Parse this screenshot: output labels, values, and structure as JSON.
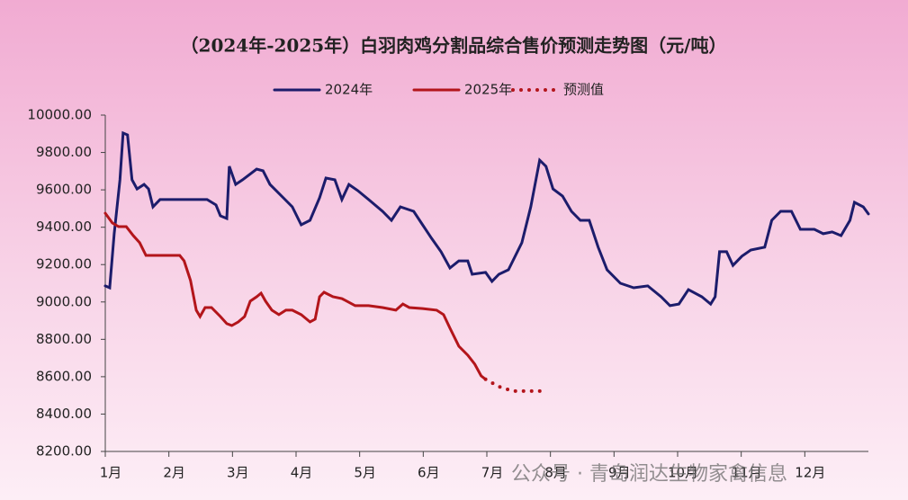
{
  "chart_data": {
    "type": "line",
    "title": "（2024年-2025年）白羽肉鸡分割品综合售价预测走势图（元/吨）",
    "watermark": "公众号 · 青岛润达生物家禽信息",
    "xlim": [
      1,
      13
    ],
    "xticks": [
      {
        "value": 1,
        "label": "1月"
      },
      {
        "value": 2,
        "label": "2月"
      },
      {
        "value": 3,
        "label": "3月"
      },
      {
        "value": 4,
        "label": "4月"
      },
      {
        "value": 5,
        "label": "5月"
      },
      {
        "value": 6,
        "label": "6月"
      },
      {
        "value": 7,
        "label": "7月"
      },
      {
        "value": 8,
        "label": "8月"
      },
      {
        "value": 9,
        "label": "9月"
      },
      {
        "value": 10,
        "label": "10月"
      },
      {
        "value": 11,
        "label": "11月"
      },
      {
        "value": 12,
        "label": "12月"
      }
    ],
    "ylim": [
      8200,
      10000
    ],
    "yticks": [
      {
        "value": 8200,
        "label": "8200.00"
      },
      {
        "value": 8400,
        "label": "8400.00"
      },
      {
        "value": 8600,
        "label": "8600.00"
      },
      {
        "value": 8800,
        "label": "8800.00"
      },
      {
        "value": 9000,
        "label": "9000.00"
      },
      {
        "value": 9200,
        "label": "9200.00"
      },
      {
        "value": 9400,
        "label": "9400.00"
      },
      {
        "value": 9600,
        "label": "9600.00"
      },
      {
        "value": 9800,
        "label": "9800.00"
      },
      {
        "value": 10000,
        "label": "10000.00"
      }
    ],
    "series": [
      {
        "name": "2024年",
        "color": "#1c1c6b",
        "dotted": false,
        "x": [
          1.0,
          1.07,
          1.14,
          1.23,
          1.28,
          1.35,
          1.42,
          1.5,
          1.61,
          1.68,
          1.75,
          1.86,
          2.17,
          2.6,
          2.74,
          2.81,
          2.91,
          2.95,
          3.05,
          3.16,
          3.38,
          3.48,
          3.59,
          3.8,
          3.94,
          4.08,
          4.22,
          4.37,
          4.47,
          4.61,
          4.72,
          4.83,
          4.97,
          5.14,
          5.36,
          5.5,
          5.64,
          5.85,
          5.99,
          6.13,
          6.28,
          6.42,
          6.56,
          6.7,
          6.77,
          6.98,
          7.08,
          7.19,
          7.34,
          7.55,
          7.69,
          7.83,
          7.93,
          8.04,
          8.19,
          8.33,
          8.47,
          8.61,
          8.75,
          8.89,
          9.1,
          9.31,
          9.53,
          9.74,
          9.88,
          10.02,
          10.17,
          10.38,
          10.52,
          10.59,
          10.66,
          10.77,
          10.87,
          11.01,
          11.15,
          11.37,
          11.48,
          11.62,
          11.79,
          11.93,
          12.15,
          12.29,
          12.43,
          12.57,
          12.71,
          12.78,
          12.92,
          13.0
        ],
        "values": [
          9086,
          9076,
          9365,
          9654,
          9904,
          9894,
          9654,
          9605,
          9629,
          9605,
          9509,
          9548,
          9548,
          9548,
          9519,
          9461,
          9447,
          9726,
          9629,
          9654,
          9711,
          9702,
          9629,
          9557,
          9509,
          9413,
          9437,
          9557,
          9663,
          9654,
          9548,
          9629,
          9596,
          9548,
          9485,
          9437,
          9509,
          9485,
          9413,
          9341,
          9269,
          9182,
          9220,
          9220,
          9148,
          9158,
          9110,
          9148,
          9172,
          9317,
          9509,
          9759,
          9726,
          9605,
          9567,
          9485,
          9437,
          9437,
          9293,
          9172,
          9100,
          9076,
          9086,
          9028,
          8980,
          8989,
          9066,
          9028,
          8989,
          9028,
          9269,
          9269,
          9196,
          9245,
          9278,
          9293,
          9437,
          9485,
          9485,
          9389,
          9389,
          9365,
          9375,
          9355,
          9437,
          9533,
          9509,
          9471
        ]
      },
      {
        "name": "2025年",
        "color": "#b3151b",
        "dotted": false,
        "x": [
          1.0,
          1.11,
          1.21,
          1.33,
          1.44,
          1.54,
          1.64,
          1.82,
          2.03,
          2.17,
          2.24,
          2.34,
          2.43,
          2.49,
          2.57,
          2.67,
          2.81,
          2.91,
          2.99,
          3.09,
          3.19,
          3.28,
          3.38,
          3.45,
          3.52,
          3.62,
          3.73,
          3.84,
          3.94,
          4.08,
          4.22,
          4.3,
          4.37,
          4.44,
          4.58,
          4.72,
          4.93,
          5.14,
          5.36,
          5.57,
          5.68,
          5.78,
          5.99,
          6.21,
          6.32,
          6.42,
          6.56,
          6.7,
          6.81,
          6.91,
          6.98
        ],
        "values": [
          9475,
          9423,
          9403,
          9403,
          9355,
          9317,
          9249,
          9249,
          9249,
          9249,
          9220,
          9115,
          8956,
          8922,
          8970,
          8970,
          8922,
          8884,
          8874,
          8893,
          8922,
          9004,
          9028,
          9047,
          9004,
          8956,
          8932,
          8956,
          8956,
          8932,
          8893,
          8908,
          9028,
          9052,
          9028,
          9018,
          8980,
          8980,
          8970,
          8956,
          8989,
          8970,
          8965,
          8956,
          8932,
          8860,
          8763,
          8715,
          8667,
          8605,
          8586
        ]
      },
      {
        "name": "预测值",
        "color": "#b3151b",
        "dotted": true,
        "x": [
          6.98,
          7.19,
          7.41,
          7.62,
          7.9
        ],
        "values": [
          8586,
          8547,
          8523,
          8523,
          8523
        ]
      }
    ]
  }
}
